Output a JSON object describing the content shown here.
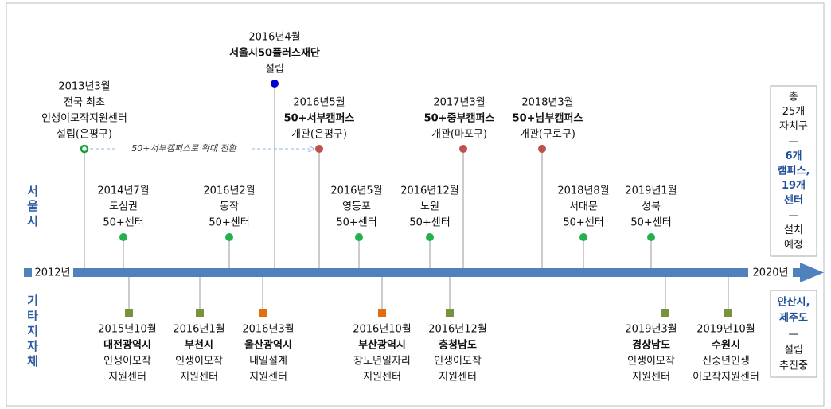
{
  "start_label": "2012년",
  "end_label": "2020년",
  "seoul": {
    "label": "서울시",
    "expansion_note": "50+서부캠퍼스로 확대 전환",
    "events": [
      {
        "date": "2013년3월",
        "details": [
          "전국 최초",
          "인생이모작지원센터",
          "설립(은평구)"
        ],
        "color": "#1a9e3f"
      },
      {
        "date": "2016년4월",
        "name": "서울시50플러스재단",
        "details": [
          "설립"
        ],
        "color": "#0000cc"
      },
      {
        "date": "2016년5월",
        "name": "50+서부캠퍼스",
        "details": [
          "개관(은평구)"
        ],
        "color": "#c0504d"
      },
      {
        "date": "2017년3월",
        "name": "50+중부캠퍼스",
        "details": [
          "개관(마포구)"
        ],
        "color": "#c0504d"
      },
      {
        "date": "2018년3월",
        "name": "50+남부캠퍼스",
        "details": [
          "개관(구로구)"
        ],
        "color": "#c0504d"
      },
      {
        "date": "2014년7월",
        "details": [
          "도심권",
          "50+센터"
        ],
        "color": "#22b14c"
      },
      {
        "date": "2016년2월",
        "details": [
          "동작",
          "50+센터"
        ],
        "color": "#22b14c"
      },
      {
        "date": "2016년5월",
        "details": [
          "영등포",
          "50+센터"
        ],
        "color": "#22b14c"
      },
      {
        "date": "2016년12월",
        "details": [
          "노원",
          "50+센터"
        ],
        "color": "#22b14c"
      },
      {
        "date": "2018년8월",
        "details": [
          "서대문",
          "50+센터"
        ],
        "color": "#22b14c"
      },
      {
        "date": "2019년1월",
        "details": [
          "성북",
          "50+센터"
        ],
        "color": "#22b14c"
      }
    ],
    "summary": [
      "총",
      "25개",
      "자치구",
      "—",
      "6개",
      "캠퍼스,",
      "19개",
      "센터",
      "—",
      "설치",
      "예정"
    ]
  },
  "others": {
    "label": "기타지자체",
    "events": [
      {
        "date": "2015년10월",
        "name": "대전광역시",
        "details": [
          "인생이모작",
          "지원센터"
        ],
        "color": "#77933c"
      },
      {
        "date": "2016년1월",
        "name": "부천시",
        "details": [
          "인생이모작",
          "지원센터"
        ],
        "color": "#77933c"
      },
      {
        "date": "2016년3월",
        "name": "울산광역시",
        "details": [
          "내일설계",
          "지원센터"
        ],
        "color": "#e46c0a"
      },
      {
        "date": "2016년10월",
        "name": "부산광역시",
        "details": [
          "장노년일자리",
          "지원센터"
        ],
        "color": "#e46c0a"
      },
      {
        "date": "2016년12월",
        "name": "충청남도",
        "details": [
          "인생이모작",
          "지원센터"
        ],
        "color": "#77933c"
      },
      {
        "date": "2019년3월",
        "name": "경상남도",
        "details": [
          "인생이모작",
          "지원센터"
        ],
        "color": "#77933c"
      },
      {
        "date": "2019년10월",
        "name": "수원시",
        "details": [
          "신중년인생",
          "이모작지원센터"
        ],
        "color": "#77933c"
      }
    ],
    "summary": [
      "안산시,",
      "제주도",
      "—",
      "설립",
      "추진중"
    ]
  }
}
